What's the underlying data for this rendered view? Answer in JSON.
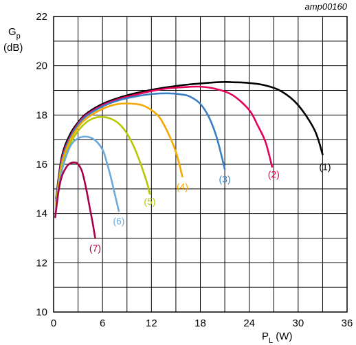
{
  "chart_data": {
    "type": "line",
    "reference": "amp00160",
    "ylabel_main": "G",
    "ylabel_sub": "p",
    "ylabel_unit": "(dB)",
    "xlabel_main": "P",
    "xlabel_sub": "L",
    "xlabel_unit": " (W)",
    "xlim": [
      0,
      36
    ],
    "ylim": [
      10,
      22
    ],
    "xticks": [
      "0",
      "6",
      "12",
      "18",
      "24",
      "30",
      "36"
    ],
    "yticks": [
      "10",
      "12",
      "14",
      "16",
      "18",
      "20",
      "22"
    ],
    "grid": true,
    "series": [
      {
        "name": "(1)",
        "color": "#000000",
        "x": [
          0.3,
          1,
          2,
          3,
          4,
          6,
          8,
          10,
          12,
          14,
          16,
          18,
          20,
          21,
          22,
          24,
          26,
          28,
          30,
          32,
          33
        ],
        "y": [
          14.6,
          16.3,
          17.2,
          17.7,
          18.05,
          18.45,
          18.7,
          18.88,
          19.02,
          19.13,
          19.22,
          19.28,
          19.33,
          19.34,
          19.33,
          19.3,
          19.2,
          18.95,
          18.4,
          17.4,
          16.4
        ]
      },
      {
        "name": "(2)",
        "color": "#e5005a",
        "x": [
          0.3,
          1,
          2,
          3,
          4,
          6,
          8,
          10,
          12,
          14,
          16,
          18,
          20,
          22,
          24,
          25,
          26,
          26.8
        ],
        "y": [
          14.5,
          16.2,
          17.1,
          17.65,
          18.0,
          18.4,
          18.65,
          18.82,
          18.97,
          19.08,
          19.13,
          19.15,
          19.05,
          18.8,
          18.2,
          17.6,
          16.9,
          15.9
        ]
      },
      {
        "name": "(3)",
        "color": "#3a7fc4",
        "x": [
          0.3,
          1,
          2,
          3,
          4,
          6,
          8,
          10,
          12,
          14,
          16,
          17,
          18,
          19,
          20,
          21
        ],
        "y": [
          14.5,
          16.1,
          17.05,
          17.6,
          17.95,
          18.35,
          18.6,
          18.75,
          18.85,
          18.88,
          18.82,
          18.7,
          18.45,
          17.95,
          17.1,
          15.8
        ]
      },
      {
        "name": "(4)",
        "color": "#f5a800",
        "x": [
          0.3,
          1,
          2,
          3,
          4,
          6,
          8,
          10,
          11,
          12,
          13,
          14,
          15,
          15.8
        ],
        "y": [
          14.4,
          16.0,
          16.95,
          17.5,
          17.85,
          18.25,
          18.45,
          18.45,
          18.38,
          18.2,
          17.9,
          17.3,
          16.5,
          15.5
        ]
      },
      {
        "name": "(5)",
        "color": "#b5c800",
        "x": [
          0.3,
          1,
          2,
          3,
          4,
          5,
          6,
          7,
          8,
          9,
          10,
          10.8,
          11.5,
          11.8
        ],
        "y": [
          14.3,
          15.8,
          16.8,
          17.35,
          17.7,
          17.88,
          17.92,
          17.85,
          17.65,
          17.25,
          16.6,
          15.9,
          15.2,
          14.8
        ]
      },
      {
        "name": "(6)",
        "color": "#6ea9dc",
        "x": [
          0.3,
          1,
          2,
          3,
          4,
          5,
          6,
          6.5,
          7,
          7.5,
          8
        ],
        "y": [
          14.2,
          15.7,
          16.7,
          17.05,
          17.12,
          17.0,
          16.6,
          16.1,
          15.5,
          14.8,
          14.1
        ]
      },
      {
        "name": "(7)",
        "color": "#a8004a",
        "x": [
          0.2,
          0.6,
          1,
          1.5,
          2,
          2.6,
          3,
          3.5,
          4,
          4.4,
          4.8,
          5.1
        ],
        "y": [
          13.85,
          14.9,
          15.5,
          15.85,
          16.03,
          16.07,
          16.0,
          15.7,
          15.0,
          14.3,
          13.6,
          13.0
        ]
      }
    ],
    "label_positions": [
      {
        "text": "(1)",
        "x": 33.3,
        "y": 15.9,
        "color": "#000000"
      },
      {
        "text": "(2)",
        "x": 27.0,
        "y": 15.6,
        "color": "#e5005a"
      },
      {
        "text": "(3)",
        "x": 21.0,
        "y": 15.4,
        "color": "#3a7fc4"
      },
      {
        "text": "(4)",
        "x": 15.8,
        "y": 15.1,
        "color": "#f5a800"
      },
      {
        "text": "(5)",
        "x": 11.8,
        "y": 14.5,
        "color": "#b5c800"
      },
      {
        "text": "(6)",
        "x": 8.0,
        "y": 13.7,
        "color": "#6ea9dc"
      },
      {
        "text": "(7)",
        "x": 5.1,
        "y": 12.6,
        "color": "#a8004a"
      }
    ]
  }
}
